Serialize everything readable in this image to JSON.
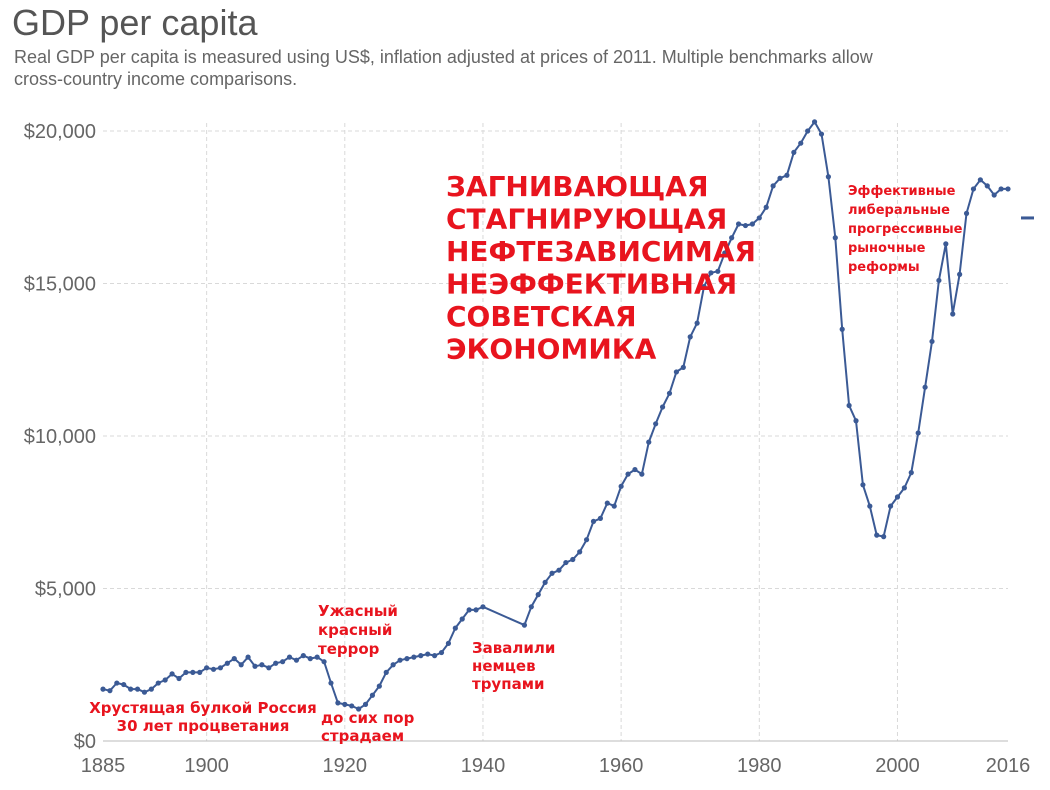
{
  "header": {
    "title": "GDP per capita",
    "subtitle_line1": "Real GDP per capita is measured using US$, inflation adjusted at prices of 2011. Multiple benchmarks allow",
    "subtitle_line2": "cross-country income comparisons."
  },
  "colors": {
    "line": "#3b5a95",
    "annotation": "#e8141e",
    "grid": "#d9d9d9",
    "axis_text": "#666666"
  },
  "chart_data": {
    "type": "line",
    "title": "GDP per capita",
    "subtitle": "Real GDP per capita is measured using US$, inflation adjusted at prices of 2011. Multiple benchmarks allow cross-country income comparisons.",
    "xlabel": "",
    "ylabel": "",
    "xlim": [
      1885,
      2016
    ],
    "ylim": [
      0,
      20000
    ],
    "grid": true,
    "x_ticks": [
      1885,
      1900,
      1920,
      1940,
      1960,
      1980,
      2000,
      2016
    ],
    "x_tick_labels": [
      "1885",
      "1900",
      "1920",
      "1940",
      "1960",
      "1980",
      "2000",
      "2016"
    ],
    "y_ticks": [
      0,
      5000,
      10000,
      15000,
      20000
    ],
    "y_tick_labels": [
      "$0",
      "$5,000",
      "$10,000",
      "$15,000",
      "$20,000"
    ],
    "series": [
      {
        "x": [
          1885,
          1886,
          1887,
          1888,
          1889,
          1890,
          1891,
          1892,
          1893,
          1894,
          1895,
          1896,
          1897,
          1898,
          1899,
          1900,
          1901,
          1902,
          1903,
          1904,
          1905,
          1906,
          1907,
          1908,
          1909,
          1910,
          1911,
          1912,
          1913,
          1914,
          1915,
          1916,
          1917,
          1918,
          1919,
          1920,
          1921,
          1922,
          1923,
          1924,
          1925,
          1926,
          1927,
          1928,
          1929,
          1930,
          1931,
          1932,
          1933,
          1934,
          1935,
          1936,
          1937,
          1938,
          1939,
          1940,
          1946,
          1947,
          1948,
          1949,
          1950,
          1951,
          1952,
          1953,
          1954,
          1955,
          1956,
          1957,
          1958,
          1959,
          1960,
          1961,
          1962,
          1963,
          1964,
          1965,
          1966,
          1967,
          1968,
          1969,
          1970,
          1971,
          1972,
          1973,
          1974,
          1975,
          1976,
          1977,
          1978,
          1979,
          1980,
          1981,
          1982,
          1983,
          1984,
          1985,
          1986,
          1987,
          1988,
          1989,
          1990,
          1991,
          1992,
          1993,
          1994,
          1995,
          1996,
          1997,
          1998,
          1999,
          2000,
          2001,
          2002,
          2003,
          2004,
          2005,
          2006,
          2007,
          2008,
          2009,
          2010,
          2011,
          2012,
          2013,
          2014,
          2015,
          2016
        ],
        "y": [
          1700,
          1650,
          1900,
          1850,
          1700,
          1700,
          1600,
          1700,
          1900,
          2000,
          2200,
          2050,
          2250,
          2250,
          2250,
          2400,
          2350,
          2400,
          2550,
          2700,
          2500,
          2750,
          2450,
          2500,
          2400,
          2550,
          2600,
          2750,
          2650,
          2800,
          2700,
          2750,
          2600,
          1900,
          1250,
          1200,
          1150,
          1050,
          1200,
          1500,
          1800,
          2250,
          2500,
          2650,
          2700,
          2750,
          2800,
          2850,
          2800,
          2900,
          3200,
          3700,
          4000,
          4300,
          4300,
          4400,
          3800,
          4400,
          4800,
          5200,
          5500,
          5600,
          5850,
          5950,
          6200,
          6600,
          7200,
          7300,
          7800,
          7700,
          8350,
          8750,
          8900,
          8750,
          9800,
          10400,
          10950,
          11400,
          12100,
          12250,
          13250,
          13700,
          14900,
          15350,
          15400,
          16000,
          16500,
          16950,
          16900,
          16950,
          17150,
          17500,
          18200,
          18450,
          18550,
          19300,
          19600,
          20000,
          20300,
          19900,
          18500,
          16500,
          13500,
          11000,
          10500,
          8400,
          7700,
          6750,
          6700,
          7700,
          8000,
          8300,
          8800,
          10100,
          11600,
          13100,
          15100,
          16300,
          14000,
          15300,
          17300,
          18100,
          18400,
          18200,
          17900,
          18100,
          18100
        ]
      }
    ],
    "annotations": [
      {
        "lines": [
          "Хрустящая булкой Россия",
          "30 лет процветания"
        ]
      },
      {
        "lines": [
          "Ужасный",
          "красный",
          "террор"
        ]
      },
      {
        "lines": [
          "до сих пор",
          "страдаем"
        ]
      },
      {
        "lines": [
          "Завалили",
          "немцев",
          "трупами"
        ]
      },
      {
        "lines": [
          "ЗАГНИВАЮЩАЯ",
          "СТАГНИРУЮЩАЯ",
          "НЕФТЕЗАВИСИМАЯ",
          "НЕЭФФЕКТИВНАЯ",
          "СОВЕТСКАЯ",
          "ЭКОНОМИКА"
        ]
      },
      {
        "lines": [
          "Эффективные",
          "либеральные",
          "прогрессивные",
          "рыночные",
          "реформы"
        ]
      }
    ]
  }
}
